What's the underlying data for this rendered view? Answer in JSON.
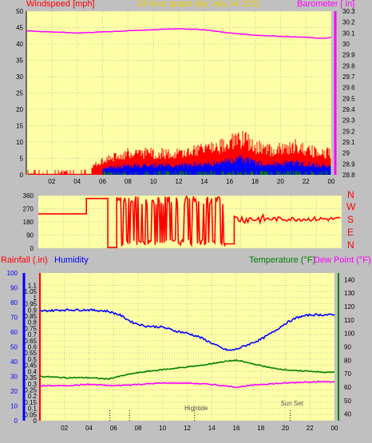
{
  "header": {
    "left_axis_title": "Windspeed [mph]",
    "center_title": "24 hour graph day   July 24 2021",
    "right_axis_title": "Barometer [ in]",
    "colors": {
      "left": "#ff0000",
      "center": "#f0d000",
      "right": "#ff00ff"
    }
  },
  "lower_header": {
    "rain_title": "Rainfall (.in)",
    "humidity_title": "Humidity",
    "temperature_title": "Temperature (°F)",
    "dewpoint_title": "Dew Point (°F)",
    "colors": {
      "rain": "#ff0000",
      "humidity": "#0000ff",
      "temperature": "#008000",
      "dewpoint": "#ff00ff"
    }
  },
  "wind_dir_labels": [
    "N",
    "W",
    "S",
    "E",
    "N"
  ],
  "annotations": [
    {
      "text": "Hightide",
      "hour": 12.6
    },
    {
      "text": "Sun Set",
      "hour": 20.4
    }
  ],
  "chart_data": [
    {
      "id": "wind",
      "type": "area",
      "x_ticks": [
        "02",
        "04",
        "06",
        "08",
        "10",
        "12",
        "14",
        "16",
        "18",
        "20",
        "22",
        "00"
      ],
      "x_range_hours": [
        0,
        24
      ],
      "y_left": {
        "label": "Windspeed [mph]",
        "range": [
          0,
          50
        ],
        "ticks": [
          0,
          5,
          10,
          15,
          20,
          25,
          30,
          35,
          40,
          45,
          50
        ]
      },
      "y_right": {
        "label": "Barometer [ in]",
        "range": [
          28.8,
          30.3
        ],
        "ticks": [
          "28.8",
          "28.9",
          "29",
          "29.1",
          "29.2",
          "29.3",
          "29.4",
          "29.5",
          "29.6",
          "29.7",
          "29.8",
          "29.9",
          "30",
          "30.1",
          "30.2",
          "30.3"
        ]
      },
      "barometer": {
        "hours": [
          0,
          2,
          4,
          6,
          8,
          10,
          12,
          14,
          16,
          18,
          20,
          22,
          23.5,
          24
        ],
        "values": [
          30.12,
          30.11,
          30.1,
          30.11,
          30.12,
          30.13,
          30.14,
          30.13,
          30.1,
          30.08,
          30.07,
          30.06,
          30.05,
          30.06
        ]
      },
      "gust_profile": {
        "hours": [
          0,
          1,
          2,
          3,
          4,
          5,
          5.5,
          6,
          7,
          8,
          10,
          12,
          14,
          15.5,
          16,
          17,
          18,
          19,
          20,
          21,
          22,
          23,
          24
        ],
        "values": [
          0,
          1,
          0,
          1,
          1,
          2,
          3,
          4,
          5,
          6,
          6,
          6,
          7,
          8,
          9,
          10,
          8,
          7,
          7,
          8,
          7,
          6,
          6
        ]
      },
      "series_colors": {
        "gust": "#ff0000",
        "average": "#0000ff",
        "calm": "#008000",
        "barometer": "#ff00ff"
      }
    },
    {
      "id": "direction",
      "type": "line",
      "y_range": [
        0,
        360
      ],
      "y_ticks": [
        0,
        90,
        180,
        270,
        360
      ],
      "segments": [
        {
          "from": 0,
          "to": 3.8,
          "value": 235
        },
        {
          "from": 3.8,
          "to": 5.5,
          "value": 340
        },
        {
          "from": 5.5,
          "to": 6.2,
          "value": 5
        },
        {
          "from": 6.2,
          "to": 14.8,
          "value": "variable"
        },
        {
          "from": 14.8,
          "to": 15.5,
          "value": 30
        },
        {
          "from": 15.5,
          "to": 24,
          "value": 200
        }
      ],
      "color": "#ff0000"
    },
    {
      "id": "climate",
      "type": "line",
      "x_ticks": [
        "02",
        "04",
        "06",
        "08",
        "10",
        "12",
        "14",
        "16",
        "18",
        "20",
        "22",
        "00"
      ],
      "x_range_hours": [
        0,
        24
      ],
      "y_rain": {
        "range": [
          0,
          100
        ],
        "ticks": [
          0,
          10,
          20,
          30,
          40,
          50,
          60,
          70,
          80,
          90,
          100
        ]
      },
      "y_humidity": {
        "range": [
          0,
          1.2
        ],
        "ticks": [
          "0",
          "0.05",
          "0.1",
          "0.15",
          "0.2",
          "0.25",
          "0.3",
          "0.35",
          "0.4",
          "0.45",
          "0.5",
          "0.55",
          "0.6",
          "0.65",
          "0.7",
          "0.75",
          "0.8",
          "0.85",
          "0.9",
          "0.95",
          "1",
          "1.05",
          "1.1"
        ]
      },
      "y_temp": {
        "range": [
          35,
          145
        ],
        "ticks": [
          40,
          50,
          60,
          70,
          80,
          90,
          100,
          110,
          120,
          130,
          140
        ]
      },
      "humidity": {
        "hours": [
          0,
          2,
          4,
          5.5,
          6.5,
          7.5,
          8.5,
          10,
          11,
          12,
          13,
          14,
          15,
          15.5,
          16,
          17,
          18,
          19,
          20,
          21,
          22,
          23,
          24
        ],
        "values": [
          89,
          90,
          90,
          89,
          86,
          80,
          77,
          76,
          73,
          71,
          68,
          63,
          58,
          57,
          58,
          62,
          66,
          72,
          79,
          84,
          86,
          86,
          86
        ]
      },
      "temperature": {
        "hours": [
          0,
          2,
          4,
          5.5,
          6.5,
          7.5,
          9,
          11,
          13,
          15,
          16,
          17,
          18,
          19,
          20,
          21,
          22,
          23,
          24
        ],
        "values": [
          68,
          67,
          67,
          66,
          68,
          70,
          72,
          74,
          76,
          79,
          80,
          78,
          76,
          74,
          73,
          72,
          72,
          71,
          71
        ]
      },
      "dewpoint": {
        "hours": [
          0,
          2,
          4,
          6,
          8,
          10,
          12,
          14,
          16,
          18,
          20,
          22,
          24
        ],
        "values": [
          61,
          61,
          62,
          61,
          62,
          63,
          63,
          62,
          60,
          62,
          63,
          64,
          64
        ]
      },
      "rain_marks": [
        {
          "hour": 5.7
        },
        {
          "hour": 7.3
        }
      ],
      "series_colors": {
        "humidity": "#0000ff",
        "temperature": "#008000",
        "dewpoint": "#ff00ff",
        "rain": "#ff0000"
      }
    }
  ]
}
